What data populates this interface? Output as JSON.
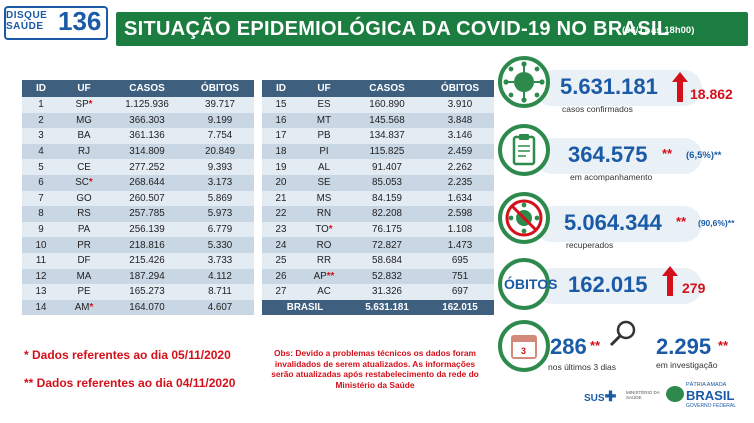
{
  "logo": {
    "line1": "DISQUE",
    "line2": "SAÚDE",
    "number": "136"
  },
  "header": {
    "title": "SITUAÇÃO EPIDEMIOLÓGICA DA COVID-19 NO BRASIL",
    "date": "(06/11 às 18h00)"
  },
  "table": {
    "columns": [
      "ID",
      "UF",
      "CASOS",
      "ÓBITOS"
    ],
    "left": [
      {
        "id": "1",
        "uf": "SP",
        "star": "*",
        "casos": "1.125.936",
        "obitos": "39.717"
      },
      {
        "id": "2",
        "uf": "MG",
        "star": "",
        "casos": "366.303",
        "obitos": "9.199"
      },
      {
        "id": "3",
        "uf": "BA",
        "star": "",
        "casos": "361.136",
        "obitos": "7.754"
      },
      {
        "id": "4",
        "uf": "RJ",
        "star": "",
        "casos": "314.809",
        "obitos": "20.849"
      },
      {
        "id": "5",
        "uf": "CE",
        "star": "",
        "casos": "277.252",
        "obitos": "9.393"
      },
      {
        "id": "6",
        "uf": "SC",
        "star": "*",
        "casos": "268.644",
        "obitos": "3.173"
      },
      {
        "id": "7",
        "uf": "GO",
        "star": "",
        "casos": "260.507",
        "obitos": "5.869"
      },
      {
        "id": "8",
        "uf": "RS",
        "star": "",
        "casos": "257.785",
        "obitos": "5.973"
      },
      {
        "id": "9",
        "uf": "PA",
        "star": "",
        "casos": "256.139",
        "obitos": "6.779"
      },
      {
        "id": "10",
        "uf": "PR",
        "star": "",
        "casos": "218.816",
        "obitos": "5.330"
      },
      {
        "id": "11",
        "uf": "DF",
        "star": "",
        "casos": "215.426",
        "obitos": "3.733"
      },
      {
        "id": "12",
        "uf": "MA",
        "star": "",
        "casos": "187.294",
        "obitos": "4.112"
      },
      {
        "id": "13",
        "uf": "PE",
        "star": "",
        "casos": "165.273",
        "obitos": "8.711"
      },
      {
        "id": "14",
        "uf": "AM",
        "star": "*",
        "casos": "164.070",
        "obitos": "4.607"
      }
    ],
    "right": [
      {
        "id": "15",
        "uf": "ES",
        "star": "",
        "casos": "160.890",
        "obitos": "3.910"
      },
      {
        "id": "16",
        "uf": "MT",
        "star": "",
        "casos": "145.568",
        "obitos": "3.848"
      },
      {
        "id": "17",
        "uf": "PB",
        "star": "",
        "casos": "134.837",
        "obitos": "3.146"
      },
      {
        "id": "18",
        "uf": "PI",
        "star": "",
        "casos": "115.825",
        "obitos": "2.459"
      },
      {
        "id": "19",
        "uf": "AL",
        "star": "",
        "casos": "91.407",
        "obitos": "2.262"
      },
      {
        "id": "20",
        "uf": "SE",
        "star": "",
        "casos": "85.053",
        "obitos": "2.235"
      },
      {
        "id": "21",
        "uf": "MS",
        "star": "",
        "casos": "84.159",
        "obitos": "1.634"
      },
      {
        "id": "22",
        "uf": "RN",
        "star": "",
        "casos": "82.208",
        "obitos": "2.598"
      },
      {
        "id": "23",
        "uf": "TO",
        "star": "*",
        "casos": "76.175",
        "obitos": "1.108"
      },
      {
        "id": "24",
        "uf": "RO",
        "star": "",
        "casos": "72.827",
        "obitos": "1.473"
      },
      {
        "id": "25",
        "uf": "RR",
        "star": "",
        "casos": "58.684",
        "obitos": "695"
      },
      {
        "id": "26",
        "uf": "AP",
        "star": "**",
        "casos": "52.832",
        "obitos": "751"
      },
      {
        "id": "27",
        "uf": "AC",
        "star": "",
        "casos": "31.326",
        "obitos": "697"
      }
    ],
    "total": {
      "label": "BRASIL",
      "casos": "5.631.181",
      "obitos": "162.015"
    }
  },
  "notes": {
    "note1": "*  Dados referentes ao dia 05/11/2020",
    "note2": "** Dados referentes ao dia 04/11/2020",
    "obs": "Obs: Devido a problemas técnicos os dados foram invalidados de serem atualizados. As informações serão atualizadas após restabelecimento da rede do Ministério da Saúde"
  },
  "stats": {
    "confirmados": {
      "value": "5.631.181",
      "delta": "18.862",
      "label": "casos confirmados"
    },
    "acompanhamento": {
      "value": "364.575",
      "stars": "**",
      "pct": "(6,5%)**",
      "label": "em acompanhamento"
    },
    "recuperados": {
      "value": "5.064.344",
      "stars": "**",
      "pct": "(90,6%)**",
      "label": "recuperados"
    },
    "obitos": {
      "label": "ÓBITOS",
      "value": "162.015",
      "delta": "279"
    },
    "ultimos": {
      "value": "286",
      "stars": "**",
      "label": "nos últimos 3 dias",
      "cal": "3"
    },
    "investigacao": {
      "value": "2.295",
      "stars": "**",
      "label": "em investigação"
    }
  },
  "footer": {
    "sus": "SUS",
    "ministerio": "MINISTÉRIO DA SAÚDE",
    "patria": "PÁTRIA AMADA",
    "brasil": "BRASIL",
    "gov": "GOVERNO FEDERAL"
  },
  "colors": {
    "green": "#1b7d3f",
    "blue": "#1a5aa6",
    "red": "#d4101a",
    "header": "#3f5f7f"
  }
}
